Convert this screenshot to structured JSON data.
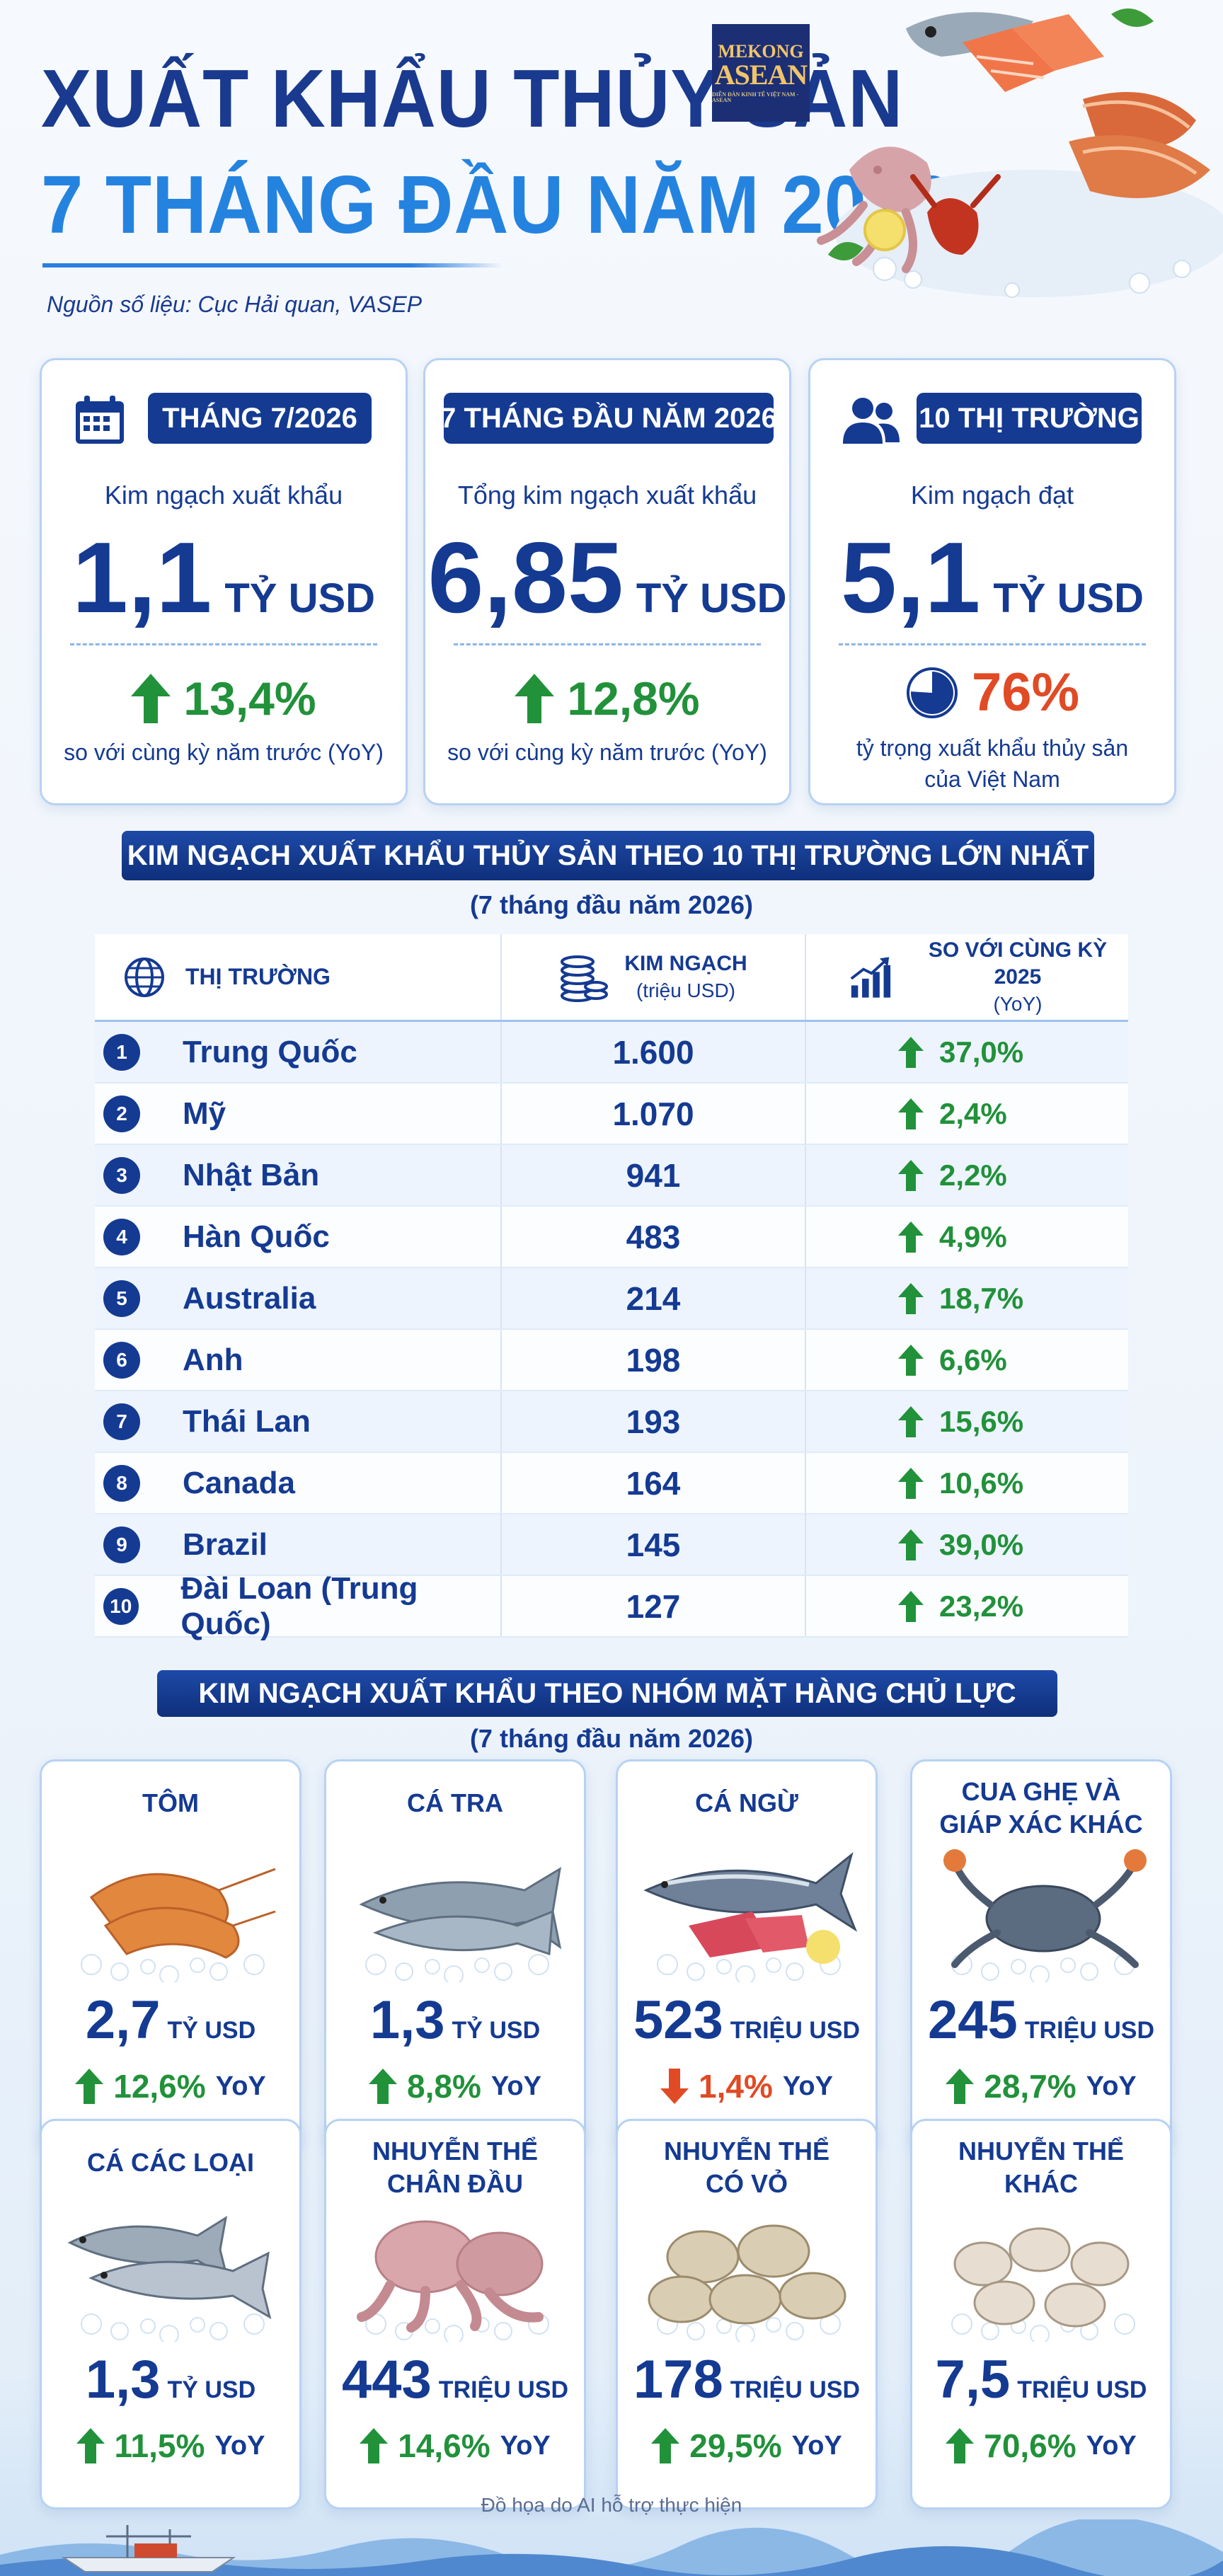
{
  "header": {
    "title_line1": "XUẤT KHẨU THỦY SẢN",
    "title_line2": "7 THÁNG ĐẦU NĂM 2026",
    "source": "Nguồn số liệu: Cục Hải quan, VASEP",
    "logo_line1": "MEKONG",
    "logo_line2": "ASEAN",
    "logo_line3": "DIỄN ĐÀN KINH TẾ VIỆT NAM - ASEAN"
  },
  "stats": [
    {
      "pill": "THÁNG 7/2026",
      "sub": "Kim ngạch xuất khẩu",
      "value": "1,1",
      "unit": "TỶ USD",
      "change": "13,4%",
      "yoy": "so với cùng kỳ năm trước (YoY)"
    },
    {
      "pill": "7 THÁNG ĐẦU NĂM 2026",
      "sub": "Tổng kim ngạch xuất khẩu",
      "value": "6,85",
      "unit": "TỶ USD",
      "change": "12,8%",
      "yoy": "so với cùng kỳ năm trước (YoY)"
    },
    {
      "pill": "10 THỊ TRƯỜNG",
      "sub": "Kim ngạch đạt",
      "value": "5,1",
      "unit": "TỶ USD",
      "share": "76%",
      "share_note_1": "tỷ trọng xuất khẩu thủy sản",
      "share_note_2": "của Việt Nam",
      "share_fraction": 0.76
    }
  ],
  "markets": {
    "title": "KIM NGẠCH XUẤT KHẨU THỦY SẢN THEO 10 THỊ TRƯỜNG LỚN NHẤT",
    "subtitle": "(7 tháng đầu năm 2026)",
    "col_market": "THỊ TRƯỜNG",
    "col_value": "KIM NGẠCH",
    "col_value_unit": "(triệu USD)",
    "col_change": "SO VỚI CÙNG KỲ 2025",
    "col_change_unit": "(YoY)",
    "rows": [
      {
        "rank": "1",
        "name": "Trung Quốc",
        "value": "1.600",
        "change": "37,0%"
      },
      {
        "rank": "2",
        "name": "Mỹ",
        "value": "1.070",
        "change": "2,4%"
      },
      {
        "rank": "3",
        "name": "Nhật Bản",
        "value": "941",
        "change": "2,2%"
      },
      {
        "rank": "4",
        "name": "Hàn Quốc",
        "value": "483",
        "change": "4,9%"
      },
      {
        "rank": "5",
        "name": "Australia",
        "value": "214",
        "change": "18,7%"
      },
      {
        "rank": "6",
        "name": "Anh",
        "value": "198",
        "change": "6,6%"
      },
      {
        "rank": "7",
        "name": "Thái Lan",
        "value": "193",
        "change": "15,6%"
      },
      {
        "rank": "8",
        "name": "Canada",
        "value": "164",
        "change": "10,6%"
      },
      {
        "rank": "9",
        "name": "Brazil",
        "value": "145",
        "change": "39,0%"
      },
      {
        "rank": "10",
        "name": "Đài Loan (Trung Quốc)",
        "value": "127",
        "change": "23,2%"
      }
    ]
  },
  "products": {
    "title": "KIM NGẠCH XUẤT KHẨU THEO NHÓM MẶT HÀNG CHỦ LỰC",
    "subtitle": "(7 tháng đầu năm 2026)",
    "yoy_label": "YoY",
    "items": [
      {
        "name1": "TÔM",
        "name2": "",
        "value": "2,7",
        "unit": "TỶ USD",
        "change": "12,6%",
        "dir": "up",
        "icon": "shrimp-icon"
      },
      {
        "name1": "CÁ TRA",
        "name2": "",
        "value": "1,3",
        "unit": "TỶ USD",
        "change": "8,8%",
        "dir": "up",
        "icon": "pangasius-icon"
      },
      {
        "name1": "CÁ NGỪ",
        "name2": "",
        "value": "523",
        "unit": "TRIỆU USD",
        "change": "1,4%",
        "dir": "down",
        "icon": "tuna-icon"
      },
      {
        "name1": "CUA GHẸ VÀ",
        "name2": "GIÁP XÁC KHÁC",
        "value": "245",
        "unit": "TRIỆU USD",
        "change": "28,7%",
        "dir": "up",
        "icon": "crab-icon"
      },
      {
        "name1": "CÁ CÁC LOẠI",
        "name2": "",
        "value": "1,3",
        "unit": "TỶ USD",
        "change": "11,5%",
        "dir": "up",
        "icon": "fish-icon"
      },
      {
        "name1": "NHUYỄN THỂ",
        "name2": "CHÂN ĐẦU",
        "value": "443",
        "unit": "TRIỆU USD",
        "change": "14,6%",
        "dir": "up",
        "icon": "octopus-icon"
      },
      {
        "name1": "NHUYỄN THỂ",
        "name2": "CÓ VỎ",
        "value": "178",
        "unit": "TRIỆU USD",
        "change": "29,5%",
        "dir": "up",
        "icon": "clam-icon"
      },
      {
        "name1": "NHUYỄN THỂ",
        "name2": "KHÁC",
        "value": "7,5",
        "unit": "TRIỆU USD",
        "change": "70,6%",
        "dir": "up",
        "icon": "shell-icon"
      }
    ]
  },
  "footer": "Đồ họa do AI hỗ trợ thực hiện",
  "colors": {
    "navy": "#143a92",
    "blue": "#2583e0",
    "green": "#21913a",
    "red": "#e04a24"
  }
}
